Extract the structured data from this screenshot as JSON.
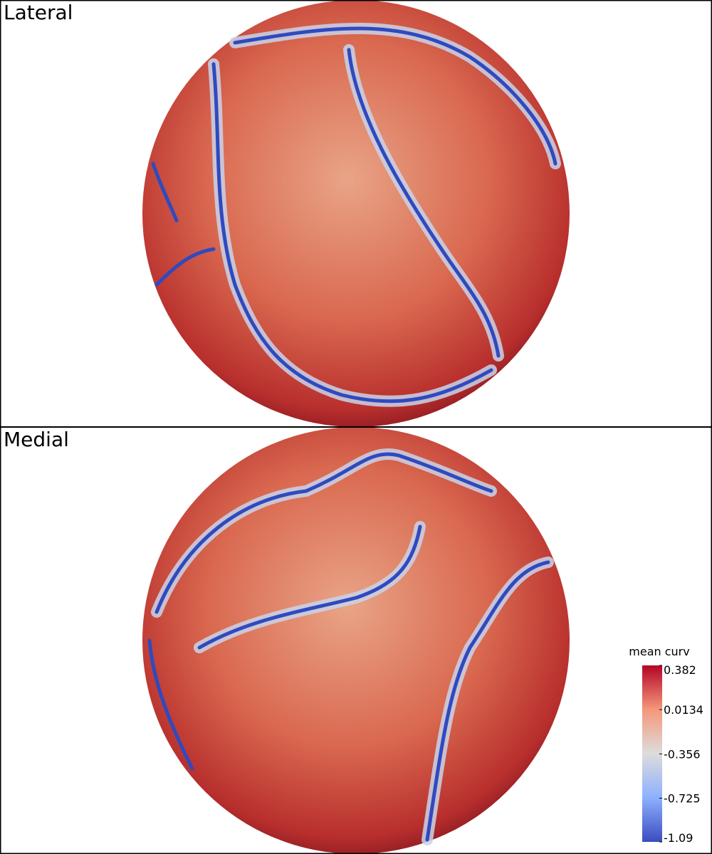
{
  "panels": [
    {
      "label": "Lateral"
    },
    {
      "label": "Medial"
    }
  ],
  "colorbar": {
    "title": "mean curv",
    "range": [
      -1.09,
      0.382
    ],
    "ticks": [
      0.382,
      0.0134,
      -0.356,
      -0.725,
      -1.09
    ]
  }
}
